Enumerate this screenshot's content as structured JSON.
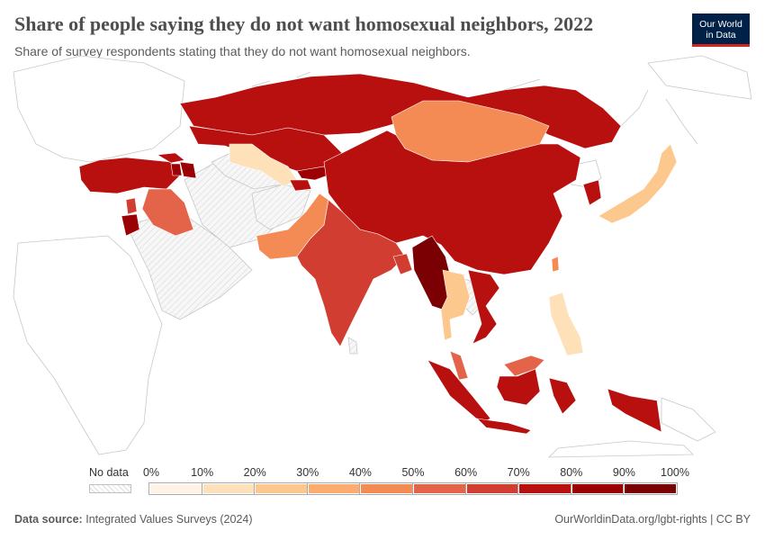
{
  "header": {
    "title": "Share of people saying they do not want homosexual neighbors, 2022",
    "subtitle": "Share of survey respondents stating that they do not want homosexual neighbors.",
    "logo_line1": "Our World",
    "logo_line2": "in Data"
  },
  "legend": {
    "no_data_label": "No data",
    "ticks": [
      "0%",
      "10%",
      "20%",
      "30%",
      "40%",
      "50%",
      "60%",
      "70%",
      "80%",
      "90%",
      "100%"
    ],
    "colors": [
      "#fff3e6",
      "#fee0b9",
      "#fdc88e",
      "#fbac6e",
      "#f48b55",
      "#e4644a",
      "#d13d31",
      "#b8100f",
      "#9b0005",
      "#7a0003"
    ]
  },
  "map_data": {
    "type": "choropleth",
    "metric": "Share not wanting homosexual neighbors (%)",
    "year": 2022,
    "scale": [
      0,
      100
    ],
    "regions": [
      {
        "name": "Russia",
        "bin": "70-80%"
      },
      {
        "name": "Kazakhstan",
        "bin": "70-80%"
      },
      {
        "name": "Uzbekistan",
        "bin": "10-20%"
      },
      {
        "name": "Kyrgyzstan",
        "bin": "80-90%"
      },
      {
        "name": "Tajikistan",
        "bin": "70-80%"
      },
      {
        "name": "Mongolia",
        "bin": "40-50%"
      },
      {
        "name": "China",
        "bin": "70-80%"
      },
      {
        "name": "Turkey",
        "bin": "70-80%"
      },
      {
        "name": "Armenia",
        "bin": "80-90%"
      },
      {
        "name": "Azerbaijan",
        "bin": "80-90%"
      },
      {
        "name": "Georgia",
        "bin": "70-80%"
      },
      {
        "name": "Iraq",
        "bin": "50-60%"
      },
      {
        "name": "Lebanon",
        "bin": "60-70%"
      },
      {
        "name": "Jordan",
        "bin": "80-90%"
      },
      {
        "name": "Pakistan",
        "bin": "40-50%"
      },
      {
        "name": "India",
        "bin": "60-70%"
      },
      {
        "name": "Bangladesh",
        "bin": "60-70%"
      },
      {
        "name": "Myanmar",
        "bin": "80-90%"
      },
      {
        "name": "Thailand",
        "bin": "20-30%"
      },
      {
        "name": "Vietnam",
        "bin": "70-80%"
      },
      {
        "name": "Malaysia",
        "bin": "50-60%"
      },
      {
        "name": "Indonesia",
        "bin": "70-80%"
      },
      {
        "name": "South Korea",
        "bin": "70-80%"
      },
      {
        "name": "Japan",
        "bin": "20-30%"
      },
      {
        "name": "Taiwan",
        "bin": "40-50%"
      },
      {
        "name": "Philippines",
        "bin": "20-30%"
      }
    ]
  },
  "footer": {
    "source_label": "Data source:",
    "source_value": "Integrated Values Surveys (2024)",
    "credit": "OurWorldinData.org/lgbt-rights | CC BY"
  }
}
